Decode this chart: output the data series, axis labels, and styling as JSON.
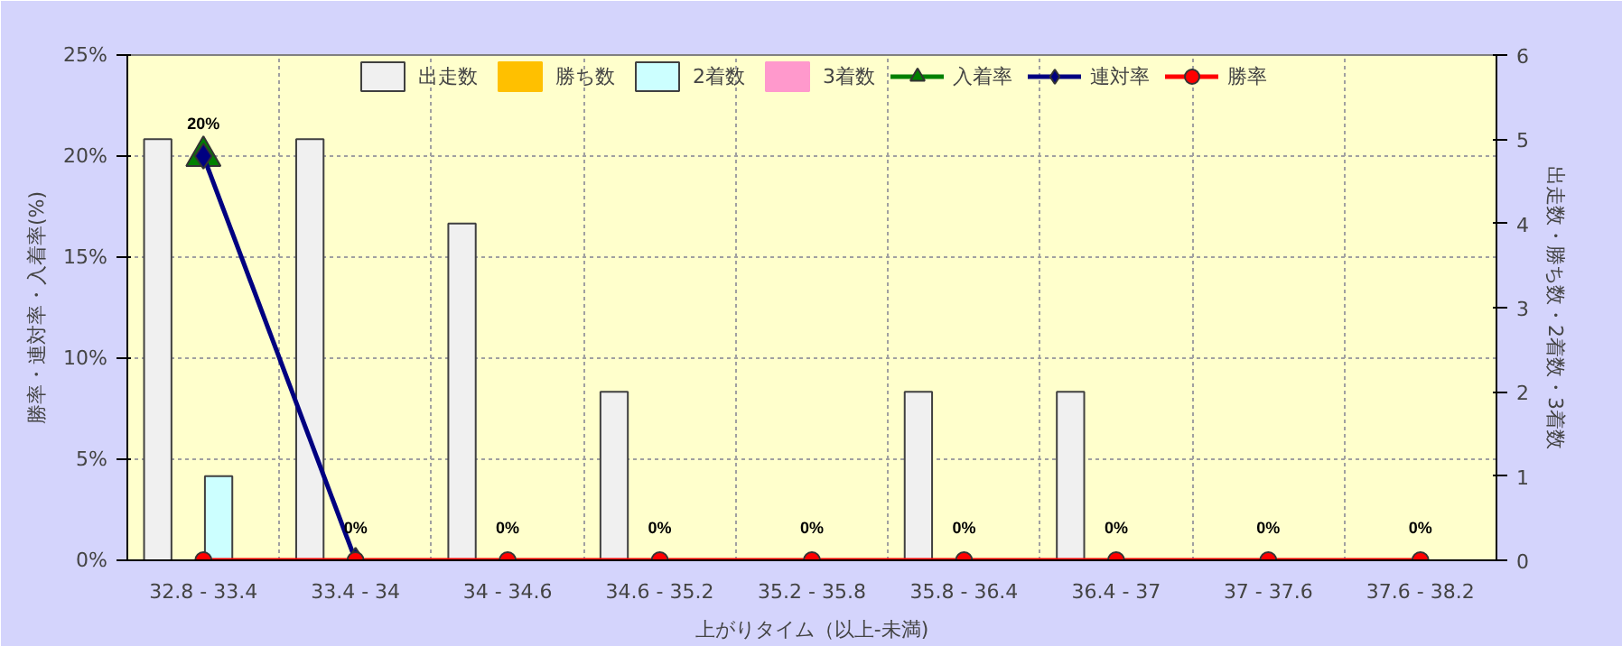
{
  "chart_data": {
    "type": "bar",
    "xlabel": "上がりタイム（以上-未満)",
    "ylabel": "勝率・連対率・入着率(%)",
    "y2label": "出走数・勝ち数・2着数・3着数",
    "categories": [
      "32.8 - 33.4",
      "33.4 - 34",
      "34 - 34.6",
      "34.6 - 35.2",
      "35.2 - 35.8",
      "35.8 - 36.4",
      "36.4 - 37",
      "37 - 37.6",
      "37.6 - 38.2"
    ],
    "series": [
      {
        "name": "出走数",
        "axis": "y2",
        "color": "#f0f0f0",
        "values": [
          5,
          5,
          4,
          2,
          0,
          2,
          2,
          0,
          0
        ]
      },
      {
        "name": "勝ち数",
        "axis": "y2",
        "color": "#ffc000",
        "values": [
          0,
          0,
          0,
          0,
          0,
          0,
          0,
          0,
          0
        ]
      },
      {
        "name": "2着数",
        "axis": "y2",
        "color": "#ccffff",
        "values": [
          1,
          0,
          0,
          0,
          0,
          0,
          0,
          0,
          0
        ]
      },
      {
        "name": "3着数",
        "axis": "y2",
        "color": "#ff99cc",
        "values": [
          0,
          0,
          0,
          0,
          0,
          0,
          0,
          0,
          0
        ]
      },
      {
        "name": "入着率",
        "type": "line",
        "marker": "triangle",
        "color": "#008000",
        "values": [
          20,
          null,
          null,
          null,
          null,
          null,
          null,
          null,
          null
        ]
      },
      {
        "name": "連対率",
        "type": "line",
        "marker": "diamond",
        "color": "#000080",
        "values": [
          20,
          0,
          null,
          null,
          null,
          null,
          null,
          null,
          null
        ],
        "value_labels": [
          "20%",
          null,
          null,
          null,
          null,
          null,
          null,
          null,
          null
        ]
      },
      {
        "name": "勝率",
        "type": "line",
        "marker": "circle",
        "color": "#ff0000",
        "values": [
          0,
          0,
          0,
          0,
          0,
          0,
          0,
          0,
          0
        ],
        "value_labels": [
          null,
          "0%",
          "0%",
          "0%",
          "0%",
          "0%",
          "0%",
          "0%",
          "0%"
        ]
      }
    ],
    "ylim": [
      0,
      25
    ],
    "yticks": [
      {
        "value": 0,
        "label": "0%"
      },
      {
        "value": 5,
        "label": "5%"
      },
      {
        "value": 10,
        "label": "10%"
      },
      {
        "value": 15,
        "label": "15%"
      },
      {
        "value": 20,
        "label": "20%"
      },
      {
        "value": 25,
        "label": "25%"
      }
    ],
    "y2lim": [
      0,
      6
    ],
    "y2ticks": [
      0,
      1,
      2,
      3,
      4,
      5,
      6
    ],
    "grid": true,
    "legend": "top",
    "line_style": "solid"
  }
}
